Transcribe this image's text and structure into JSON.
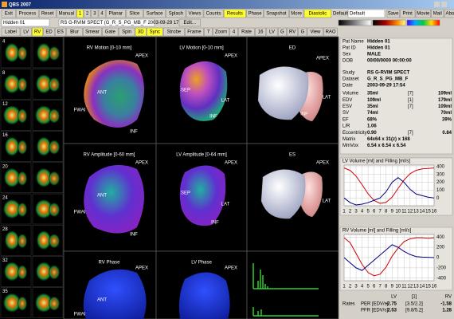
{
  "window_title": "QBS 2007",
  "menu": {
    "items": [
      "Exit",
      "Process",
      "Reset",
      "Manual",
      "1",
      "2",
      "3",
      "4",
      "Planar",
      "Slice",
      "Surface",
      "Splash",
      "Views",
      "Counts",
      "Results",
      "Phase",
      "Snapshot",
      "More",
      "Diastolic"
    ],
    "highlighted": [
      4,
      14,
      18
    ]
  },
  "defaults": {
    "label": "Defaults",
    "value": "Default"
  },
  "actions": [
    "Save",
    "Print",
    "Movie",
    "Mail",
    "About"
  ],
  "selectors": {
    "patient": "Hidden 01",
    "study": "RS G-RVIM SPECT (G_R_S_PG_MB_F 2003-09-29 17:5",
    "edit": "Edit..."
  },
  "controls": {
    "items": [
      "Label",
      "LV",
      "RV",
      "ED",
      "ES",
      "Blur",
      "Smear",
      "Gate",
      "Spin",
      "3D",
      "Sync",
      "Strobe",
      "Frame",
      "7",
      "Zoom",
      "4",
      "Rate",
      "16",
      "LV",
      "G",
      "RV",
      "G",
      "View",
      "RAO"
    ],
    "highlighted": [
      2,
      9,
      10
    ]
  },
  "thumbnails": [
    "4",
    "8",
    "12",
    "16",
    "20",
    "24",
    "28",
    "32",
    "35"
  ],
  "panels": [
    {
      "title": "RV Motion [0-10 mm]",
      "labels": [
        "APEX",
        "ANT",
        "FWAI",
        "INF"
      ]
    },
    {
      "title": "LV Motion [0-10 mm]",
      "labels": [
        "APEX",
        "SEP",
        "LAT",
        "INF"
      ]
    },
    {
      "title": "ED",
      "labels": [
        "APEX",
        "LAT",
        "INF"
      ]
    },
    {
      "title": "RV Amplitude [0-60 mm]",
      "labels": [
        "APEX",
        "ANT",
        "FWAI",
        "INF"
      ]
    },
    {
      "title": "LV Amplitude [0-64 mm]",
      "labels": [
        "APEX",
        "SEP",
        "LAT",
        "INF"
      ]
    },
    {
      "title": "ES",
      "labels": [
        "APEX",
        "LAT"
      ]
    },
    {
      "title": "RV Phase",
      "labels": [
        "APEX",
        "ANT",
        "FWAI"
      ]
    },
    {
      "title": "LV Phase",
      "labels": [
        "APEX"
      ]
    }
  ],
  "patient_info": [
    {
      "label": "Pat Name",
      "value": "Hidden 01"
    },
    {
      "label": "Pat ID",
      "value": "Hidden 01"
    },
    {
      "label": "Sex",
      "value": "MALE"
    },
    {
      "label": "DOB",
      "value": "00/00/0000 00:00:00"
    }
  ],
  "study_info": [
    {
      "label": "Study",
      "value": "RS G-RVIM SPECT"
    },
    {
      "label": "Dataset",
      "value": "G_R_S_PG_MB_F"
    },
    {
      "label": "Date",
      "value": "2003-09-29 17:54"
    }
  ],
  "lv_color": "#d00000",
  "rv_color": "#0000c8",
  "measures": [
    {
      "label": "Volume",
      "lv": "35ml",
      "frame": "[7]",
      "rv": "109ml"
    },
    {
      "label": "EDV",
      "lv": "109ml",
      "frame": "[1]",
      "rv": "179ml"
    },
    {
      "label": "ESV",
      "lv": "35ml",
      "frame": "[7]",
      "rv": "109ml"
    },
    {
      "label": "SV",
      "lv": "74ml",
      "rv": "70ml"
    },
    {
      "label": "EF",
      "lv": "68%",
      "rv": "39%"
    },
    {
      "label": "L/R",
      "value": "1.06"
    },
    {
      "label": "Eccentricity",
      "lv": "0.90",
      "frame": "[7]",
      "rv": "0.84"
    },
    {
      "label": "Matrix",
      "value": "64x64 x 31(z) x 168"
    },
    {
      "label": "MmVox",
      "value": "6.54 x 6.54 x 6.54"
    }
  ],
  "charts": [
    {
      "type": "line",
      "title": "LV Volume [ml] and Filling [ml/s]",
      "xticks": [
        1,
        2,
        3,
        4,
        5,
        6,
        7,
        8,
        9,
        10,
        11,
        12,
        13,
        14,
        15,
        16
      ],
      "grid": true,
      "ylim": [
        30,
        115
      ],
      "y2lim": [
        -100,
        420
      ],
      "y2ticks": [
        0,
        100,
        200,
        300,
        400
      ],
      "series": [
        {
          "color": "#d00000",
          "values": [
            109,
            104,
            92,
            74,
            55,
            41,
            35,
            37,
            48,
            66,
            84,
            97,
            104,
            107,
            108,
            109
          ]
        },
        {
          "color": "#000080",
          "axis": "y2",
          "values": [
            0,
            -60,
            -90,
            -80,
            -60,
            -30,
            0,
            80,
            200,
            260,
            200,
            110,
            50,
            30,
            10,
            0
          ]
        }
      ]
    },
    {
      "type": "line",
      "title": "RV Volume [ml] and Filling [ml/s]",
      "xticks": [
        1,
        2,
        3,
        4,
        5,
        6,
        7,
        8,
        9,
        10,
        11,
        12,
        13,
        14,
        15,
        16
      ],
      "grid": true,
      "ylim": [
        100,
        185
      ],
      "y2lim": [
        -450,
        450
      ],
      "y2ticks": [
        -400,
        -200,
        0,
        200,
        400
      ],
      "series": [
        {
          "color": "#d00000",
          "values": [
            179,
            170,
            150,
            130,
            115,
            109,
            112,
            125,
            145,
            160,
            172,
            177,
            179,
            179,
            178,
            179
          ]
        },
        {
          "color": "#000080",
          "axis": "y2",
          "values": [
            0,
            -100,
            -200,
            -250,
            -150,
            -50,
            50,
            150,
            250,
            200,
            120,
            60,
            20,
            10,
            5,
            0
          ]
        }
      ]
    }
  ],
  "rates": {
    "label": "Rates",
    "columns": [
      "LV",
      "[1]",
      "RV"
    ],
    "rows": [
      {
        "label": "PER [EDV/s]",
        "lv": "-2.75",
        "mid": "[3.5/2.2]",
        "rv": "-1.58"
      },
      {
        "label": "PFR [EDV/s]",
        "lv": "2.53",
        "mid": "[9.8/5.2]",
        "rv": "1.28"
      }
    ]
  }
}
